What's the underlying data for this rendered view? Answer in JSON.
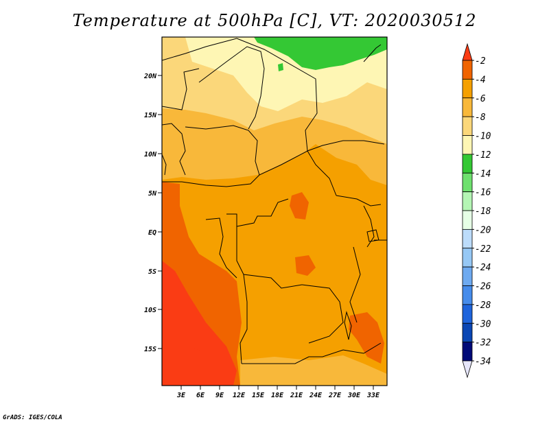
{
  "title": "Temperature at 500hPa [C], VT: 2020030512",
  "credit": "GrADS: IGES/COLA",
  "map": {
    "lat_labels": [
      "20N",
      "15N",
      "10N",
      "5N",
      "EQ",
      "5S",
      "10S",
      "15S"
    ],
    "lon_labels": [
      "3E",
      "6E",
      "9E",
      "12E",
      "15E",
      "18E",
      "21E",
      "24E",
      "27E",
      "30E",
      "33E"
    ]
  },
  "colorbar": {
    "labels": [
      "-2",
      "-4",
      "-6",
      "-8",
      "-10",
      "-12",
      "-14",
      "-16",
      "-18",
      "-20",
      "-22",
      "-24",
      "-26",
      "-28",
      "-30",
      "-32",
      "-34"
    ],
    "colors": [
      "#fa3c14",
      "#f06400",
      "#f5a000",
      "#f8b83a",
      "#fbd77a",
      "#fef6b4",
      "#34c834",
      "#6ee06e",
      "#b4f5b4",
      "#e6ffe6",
      "#bcdcfa",
      "#96c8f5",
      "#6eaaf0",
      "#468ceb",
      "#1e64dc",
      "#0a46b4",
      "#000a78",
      "#e6e6fa"
    ]
  },
  "colors": {
    "ocean_warm": "#f06400",
    "ocean_hot": "#fa3c14",
    "land_mid": "#f5a000",
    "land_light": "#f8b83a",
    "land_pale": "#fbd77a",
    "land_palest": "#fef6b4",
    "green": "#34c834",
    "green_light": "#6ee06e"
  }
}
